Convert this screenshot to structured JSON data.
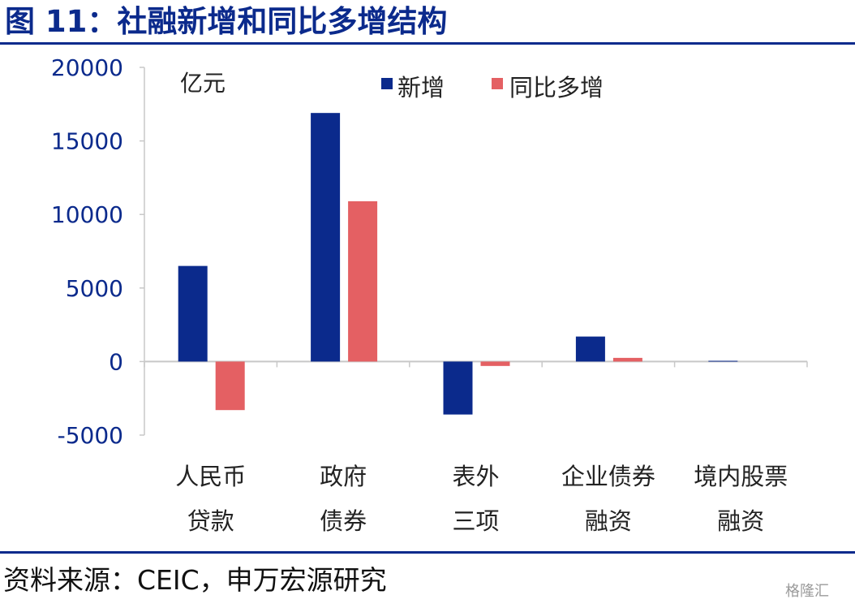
{
  "header": {
    "title": "图 11：社融新增和同比多增结构"
  },
  "footer": {
    "source": "资料来源：CEIC，申万宏源研究",
    "watermark": "格隆汇"
  },
  "chart_data": {
    "type": "bar",
    "unit_label": "亿元",
    "categories": [
      [
        "人民币",
        "贷款"
      ],
      [
        "政府",
        "债券"
      ],
      [
        "表外",
        "三项"
      ],
      [
        "企业债券",
        "融资"
      ],
      [
        "境内股票",
        "融资"
      ]
    ],
    "series": [
      {
        "name": "新增",
        "color": "#0b2a8c",
        "values": [
          6500,
          16900,
          -3600,
          1700,
          50
        ]
      },
      {
        "name": "同比多增",
        "color": "#e46063",
        "values": [
          -3300,
          10900,
          -300,
          250,
          0
        ]
      }
    ],
    "ylim": [
      -5000,
      20000
    ],
    "yticks": [
      "-5000",
      "0",
      "5000",
      "10000",
      "15000",
      "20000"
    ],
    "legend_position": "top-center",
    "grid": false
  }
}
